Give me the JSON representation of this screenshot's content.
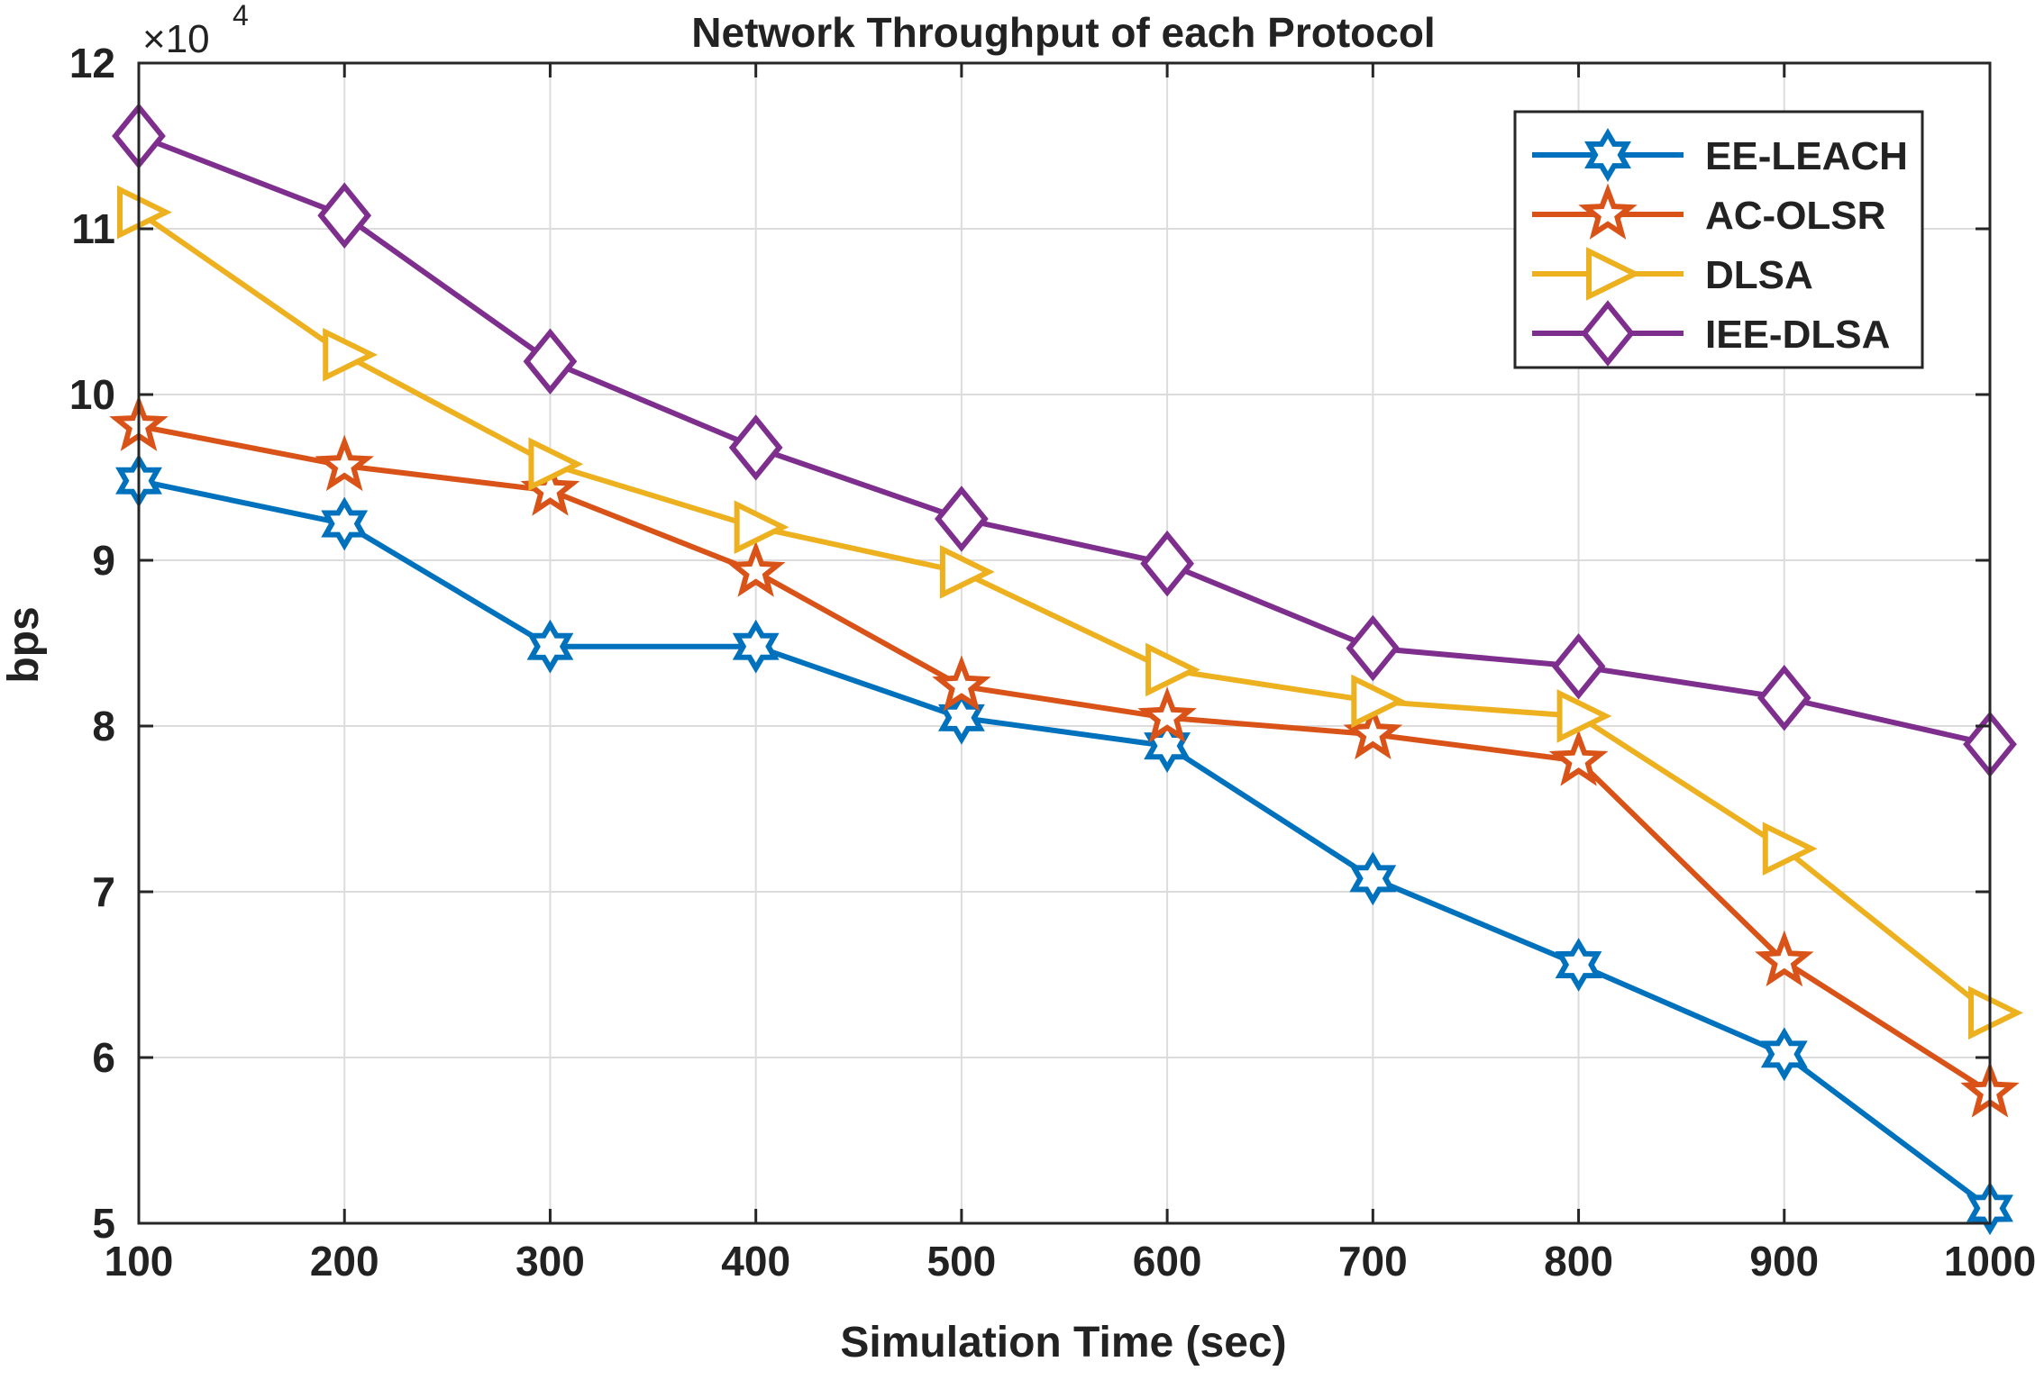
{
  "chart_data": {
    "type": "line",
    "title": "Network Throughput of each Protocol",
    "xlabel": "Simulation Time (sec)",
    "ylabel": "bps",
    "y_multiplier_base": "×10",
    "y_multiplier_exp": "4",
    "x": [
      100,
      200,
      300,
      400,
      500,
      600,
      700,
      800,
      900,
      1000
    ],
    "xlim": [
      100,
      1000
    ],
    "ylim": [
      5,
      12
    ],
    "x_ticks": [
      "100",
      "200",
      "300",
      "400",
      "500",
      "600",
      "700",
      "800",
      "900",
      "1000"
    ],
    "y_ticks": [
      "5",
      "6",
      "7",
      "8",
      "9",
      "10",
      "11",
      "12"
    ],
    "grid": true,
    "legend_position": "top-right",
    "series": [
      {
        "name": "EE-LEACH",
        "color": "#0072BD",
        "marker": "hexagram",
        "values": [
          9.48,
          9.22,
          8.48,
          8.48,
          8.05,
          7.88,
          7.08,
          6.56,
          6.02,
          5.09
        ]
      },
      {
        "name": "AC-OLSR",
        "color": "#D95319",
        "marker": "pentagram",
        "values": [
          9.81,
          9.57,
          9.42,
          8.93,
          8.24,
          8.05,
          7.95,
          7.79,
          6.58,
          5.79
        ]
      },
      {
        "name": "DLSA",
        "color": "#EDB120",
        "marker": "triangle-right",
        "values": [
          11.1,
          10.24,
          9.58,
          9.2,
          8.93,
          8.34,
          8.15,
          8.06,
          7.26,
          6.27
        ]
      },
      {
        "name": "IEE-DLSA",
        "color": "#7E2F8E",
        "marker": "diamond",
        "values": [
          11.56,
          11.08,
          10.2,
          9.68,
          9.25,
          8.98,
          8.47,
          8.36,
          8.17,
          7.89
        ]
      }
    ]
  }
}
